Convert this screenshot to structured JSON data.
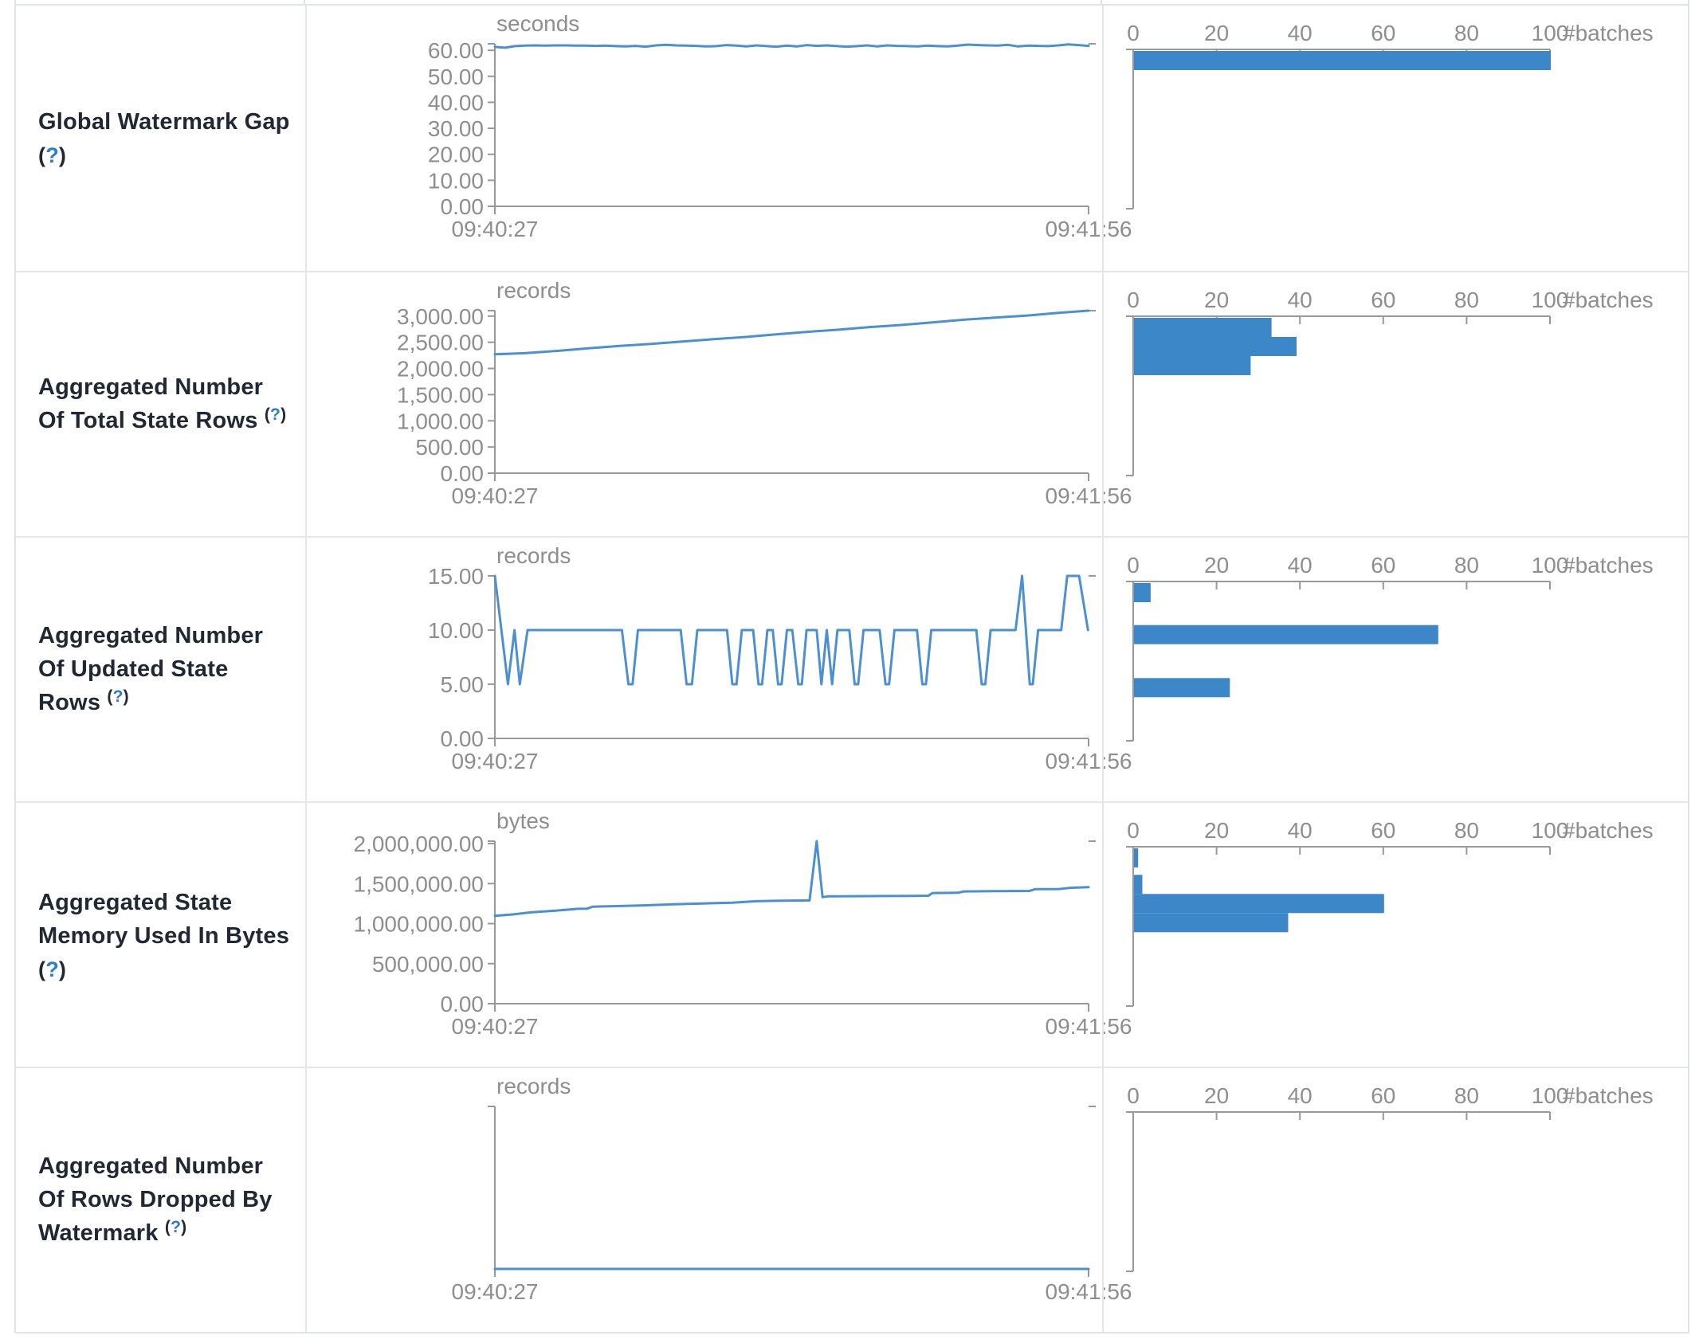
{
  "page": {
    "title": "Structured Streaming Query Statistics"
  },
  "colors": {
    "line": "#4a90d2",
    "bar": "#3c87c8",
    "axis": "#999999",
    "tick_text": "#8e8e8e",
    "label_text": "#212833",
    "help_blue": "#2b7bd3",
    "border": "#e4e6ea"
  },
  "help": {
    "open": "(",
    "q": "?",
    "close": ")"
  },
  "table": {
    "time_axis": {
      "start_label": "09:40:27",
      "end_label": "09:41:56"
    },
    "hist_axis": {
      "tick_labels": [
        "0",
        "20",
        "40",
        "60",
        "80",
        "100"
      ],
      "tick_values": [
        0,
        20,
        40,
        60,
        80,
        100
      ],
      "max": 100,
      "unit_label": "#batches"
    },
    "rows": [
      {
        "label": "Global Watermark Gap",
        "unit": "seconds",
        "y_domain_max": 62.5,
        "y_ticks": [
          {
            "label": "60.00",
            "value": 60
          },
          {
            "label": "50.00",
            "value": 50
          },
          {
            "label": "40.00",
            "value": 40
          },
          {
            "label": "30.00",
            "value": 30
          },
          {
            "label": "20.00",
            "value": 20
          },
          {
            "label": "10.00",
            "value": 10
          },
          {
            "label": "0.00",
            "value": 0
          }
        ],
        "series": {
          "y": [
            61.3,
            61.0,
            61.6,
            61.8,
            61.9,
            61.8,
            61.9,
            61.9,
            61.8,
            61.8,
            61.7,
            61.8,
            61.6,
            61.5,
            61.7,
            61.4,
            61.9,
            62.1,
            61.9,
            61.8,
            61.7,
            61.5,
            61.6,
            62.0,
            61.8,
            61.5,
            61.9,
            61.6,
            61.4,
            61.8,
            61.5,
            62.0,
            61.7,
            61.9,
            61.6,
            61.4,
            61.6,
            61.9,
            61.5,
            61.9,
            61.7,
            61.6,
            61.5,
            61.8,
            61.6,
            61.5,
            61.8,
            62.2,
            62.0,
            61.9,
            61.8,
            62.1,
            61.5,
            61.8,
            61.7,
            61.6,
            61.9,
            62.3,
            62.0,
            61.7
          ]
        },
        "hist": {
          "bins": [
            {
              "bin": 61.5,
              "count": 100
            }
          ]
        }
      },
      {
        "label": "Aggregated Number Of Total State Rows",
        "unit": "records",
        "y_domain_max": 3104,
        "y_ticks": [
          {
            "label": "3,000.00",
            "value": 3000
          },
          {
            "label": "2,500.00",
            "value": 2500
          },
          {
            "label": "2,000.00",
            "value": 2000
          },
          {
            "label": "1,500.00",
            "value": 1500
          },
          {
            "label": "1,000.00",
            "value": 1000
          },
          {
            "label": "500.00",
            "value": 500
          },
          {
            "label": "0.00",
            "value": 0
          }
        ],
        "series": {
          "y": [
            2270,
            2295,
            2335,
            2385,
            2430,
            2470,
            2515,
            2560,
            2600,
            2650,
            2700,
            2740,
            2790,
            2830,
            2880,
            2930,
            2970,
            3010,
            3060,
            3104
          ]
        },
        "hist": {
          "bins": [
            {
              "bin": 2950,
              "count": 33
            },
            {
              "bin": 2650,
              "count": 39
            },
            {
              "bin": 2350,
              "count": 28
            }
          ]
        }
      },
      {
        "label": "Aggregated Number Of Updated State Rows",
        "unit": "records",
        "y_domain_max": 15,
        "y_ticks": [
          {
            "label": "15.00",
            "value": 15
          },
          {
            "label": "10.00",
            "value": 10
          },
          {
            "label": "5.00",
            "value": 5
          },
          {
            "label": "0.00",
            "value": 0
          }
        ],
        "series": {
          "x": [
            0,
            0.022,
            0.033,
            0.042,
            0.055,
            0.214,
            0.225,
            0.232,
            0.241,
            0.313,
            0.323,
            0.332,
            0.341,
            0.391,
            0.4,
            0.407,
            0.416,
            0.435,
            0.444,
            0.45,
            0.459,
            0.468,
            0.477,
            0.483,
            0.492,
            0.501,
            0.511,
            0.517,
            0.525,
            0.542,
            0.55,
            0.559,
            0.568,
            0.577,
            0.597,
            0.606,
            0.612,
            0.621,
            0.648,
            0.658,
            0.664,
            0.673,
            0.711,
            0.72,
            0.726,
            0.735,
            0.811,
            0.82,
            0.826,
            0.835,
            0.877,
            0.888,
            0.901,
            0.906,
            0.915,
            0.954,
            0.964,
            0.984,
            0.999
          ],
          "y": [
            15,
            5,
            10,
            5,
            10,
            10,
            5,
            5,
            10,
            10,
            5,
            5,
            10,
            10,
            5,
            5,
            10,
            10,
            5,
            5,
            10,
            10,
            5,
            5,
            10,
            10,
            5,
            5,
            10,
            10,
            5,
            10,
            5,
            10,
            10,
            5,
            5,
            10,
            10,
            5,
            5,
            10,
            10,
            5,
            5,
            10,
            10,
            5,
            5,
            10,
            10,
            15,
            5,
            5,
            10,
            10,
            15,
            15,
            10
          ]
        },
        "hist": {
          "bins": [
            {
              "bin": 15,
              "count": 4
            },
            {
              "bin": 10,
              "count": 73
            },
            {
              "bin": 5,
              "count": 23
            }
          ]
        }
      },
      {
        "label": "Aggregated State Memory Used In Bytes",
        "unit": "bytes",
        "y_domain_max": 2030000,
        "y_ticks": [
          {
            "label": "2,000,000.00",
            "value": 2000000
          },
          {
            "label": "1,500,000.00",
            "value": 1500000
          },
          {
            "label": "1,000,000.00",
            "value": 1000000
          },
          {
            "label": "500,000.00",
            "value": 500000
          },
          {
            "label": "0.00",
            "value": 0
          }
        ],
        "series": {
          "x": [
            0,
            0.03,
            0.06,
            0.1,
            0.14,
            0.155,
            0.165,
            0.2,
            0.25,
            0.3,
            0.35,
            0.4,
            0.44,
            0.47,
            0.5,
            0.53,
            0.542,
            0.552,
            0.56,
            0.6,
            0.65,
            0.7,
            0.73,
            0.737,
            0.78,
            0.79,
            0.84,
            0.85,
            0.9,
            0.91,
            0.95,
            0.97,
            1.0
          ],
          "y": [
            1098000,
            1115000,
            1140000,
            1160000,
            1185000,
            1186000,
            1212000,
            1218000,
            1228000,
            1242000,
            1252000,
            1262000,
            1280000,
            1285000,
            1288000,
            1290000,
            2030000,
            1330000,
            1340000,
            1342000,
            1344000,
            1346000,
            1348000,
            1382000,
            1385000,
            1402000,
            1405000,
            1405000,
            1408000,
            1430000,
            1432000,
            1448000,
            1455000
          ]
        },
        "hist": {
          "bins": [
            {
              "bin": 1930000,
              "count": 1
            },
            {
              "bin": 1550000,
              "count": 2
            },
            {
              "bin": 1350000,
              "count": 60
            },
            {
              "bin": 1150000,
              "count": 37
            }
          ]
        }
      },
      {
        "label": "Aggregated Number Of Rows Dropped By Watermark",
        "unit": "records",
        "y_domain_max": 1,
        "y_ticks": [],
        "series": {
          "y": [
            0,
            0
          ]
        },
        "hist": {
          "bins": []
        }
      }
    ]
  }
}
